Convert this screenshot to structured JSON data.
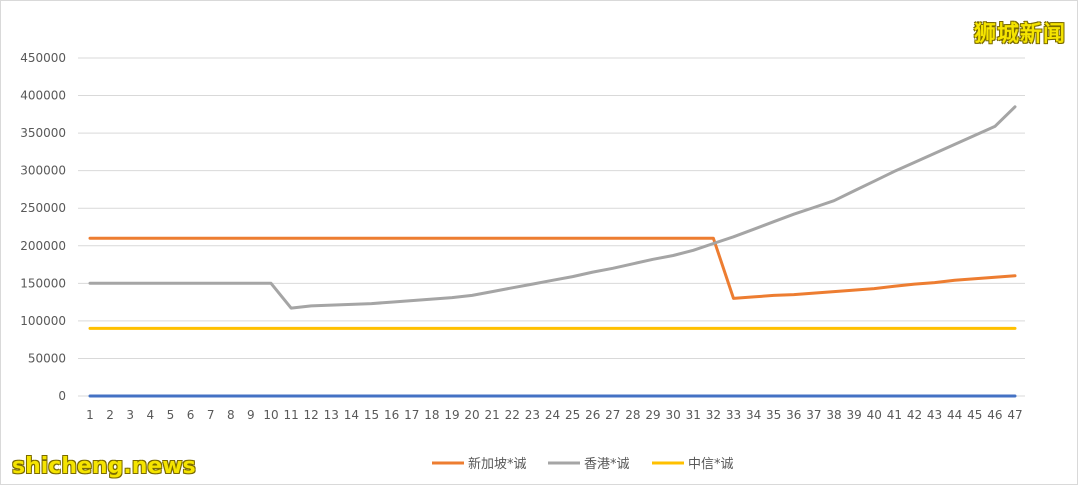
{
  "watermarks": {
    "top_right": "狮城新闻",
    "bottom_left": "shicheng.news"
  },
  "chart_data": {
    "type": "line",
    "title": "",
    "xlabel": "",
    "ylabel": "",
    "ylim": [
      0,
      450000
    ],
    "yticks": [
      0,
      50000,
      100000,
      150000,
      200000,
      250000,
      300000,
      350000,
      400000,
      450000
    ],
    "grid": true,
    "legend_position": "bottom",
    "x": [
      1,
      2,
      3,
      4,
      5,
      6,
      7,
      8,
      9,
      10,
      11,
      12,
      13,
      14,
      15,
      16,
      17,
      18,
      19,
      20,
      21,
      22,
      23,
      24,
      25,
      26,
      27,
      28,
      29,
      30,
      31,
      32,
      33,
      34,
      35,
      36,
      37,
      38,
      39,
      40,
      41,
      42,
      43,
      44,
      45,
      46,
      47
    ],
    "series": [
      {
        "name": "",
        "color": "#4472c4",
        "values": [
          0,
          0,
          0,
          0,
          0,
          0,
          0,
          0,
          0,
          0,
          0,
          0,
          0,
          0,
          0,
          0,
          0,
          0,
          0,
          0,
          0,
          0,
          0,
          0,
          0,
          0,
          0,
          0,
          0,
          0,
          0,
          0,
          0,
          0,
          0,
          0,
          0,
          0,
          0,
          0,
          0,
          0,
          0,
          0,
          0,
          0,
          0
        ]
      },
      {
        "name": "新加坡*诚",
        "color": "#ed7d31",
        "values": [
          210000,
          210000,
          210000,
          210000,
          210000,
          210000,
          210000,
          210000,
          210000,
          210000,
          210000,
          210000,
          210000,
          210000,
          210000,
          210000,
          210000,
          210000,
          210000,
          210000,
          210000,
          210000,
          210000,
          210000,
          210000,
          210000,
          210000,
          210000,
          210000,
          210000,
          210000,
          210000,
          130000,
          132000,
          134000,
          135000,
          137000,
          139000,
          141000,
          143000,
          146000,
          149000,
          151000,
          154000,
          156000,
          158000,
          160000
        ]
      },
      {
        "name": "香港*诚",
        "color": "#a5a5a5",
        "values": [
          150000,
          150000,
          150000,
          150000,
          150000,
          150000,
          150000,
          150000,
          150000,
          150000,
          117000,
          120000,
          121000,
          122000,
          123000,
          125000,
          127000,
          129000,
          131000,
          134000,
          139000,
          144000,
          149000,
          154000,
          159000,
          165000,
          170000,
          176000,
          182000,
          187000,
          194000,
          203000,
          212000,
          222000,
          232000,
          242000,
          251000,
          260000,
          273000,
          286000,
          299000,
          311000,
          323000,
          335000,
          347000,
          359000,
          385000
        ]
      },
      {
        "name": "中信*诚",
        "color": "#ffc000",
        "values": [
          90000,
          90000,
          90000,
          90000,
          90000,
          90000,
          90000,
          90000,
          90000,
          90000,
          90000,
          90000,
          90000,
          90000,
          90000,
          90000,
          90000,
          90000,
          90000,
          90000,
          90000,
          90000,
          90000,
          90000,
          90000,
          90000,
          90000,
          90000,
          90000,
          90000,
          90000,
          90000,
          90000,
          90000,
          90000,
          90000,
          90000,
          90000,
          90000,
          90000,
          90000,
          90000,
          90000,
          90000,
          90000,
          90000,
          90000
        ]
      }
    ]
  }
}
